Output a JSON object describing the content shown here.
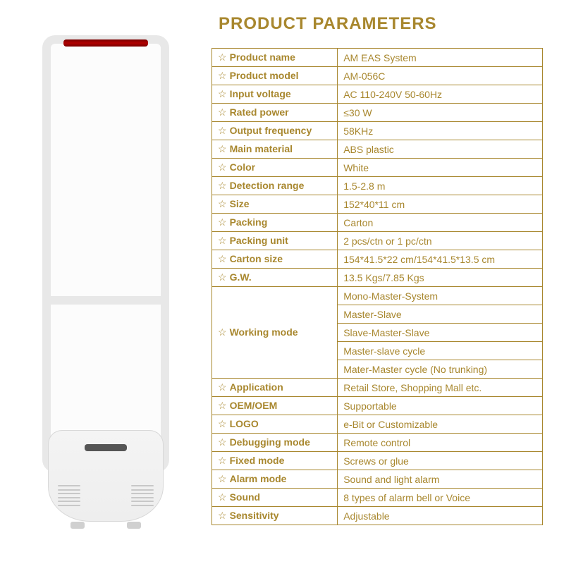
{
  "title": "PRODUCT PARAMETERS",
  "title_color": "#a8872e",
  "table": {
    "border_color": "#a8872e",
    "text_color": "#a8872e",
    "star_glyph": "☆",
    "rows": [
      {
        "label": "Product name",
        "value": "AM EAS System"
      },
      {
        "label": "Product model",
        "value": "AM-056C"
      },
      {
        "label": "Input voltage",
        "value": "AC 110-240V 50-60Hz"
      },
      {
        "label": "Rated power",
        "value": "≤30 W"
      },
      {
        "label": "Output frequency",
        "value": "58KHz"
      },
      {
        "label": "Main material",
        "value": "ABS plastic"
      },
      {
        "label": "Color",
        "value": "White"
      },
      {
        "label": "Detection range",
        "value": "1.5-2.8 m"
      },
      {
        "label": "Size",
        "value": "152*40*11 cm"
      },
      {
        "label": "Packing",
        "value": "Carton"
      },
      {
        "label": "Packing unit",
        "value": "2 pcs/ctn or 1 pc/ctn"
      },
      {
        "label": "Carton size",
        "value": "154*41.5*22 cm/154*41.5*13.5 cm"
      },
      {
        "label": "G.W.",
        "value": "13.5 Kgs/7.85 Kgs"
      },
      {
        "label": "Working mode",
        "value": "",
        "rowspan": 5,
        "values": [
          "Mono-Master-System",
          "Master-Slave",
          "Slave-Master-Slave",
          "Master-slave cycle",
          "Mater-Master cycle (No trunking)"
        ]
      },
      {
        "label": "Application",
        "value": "Retail Store, Shopping Mall etc."
      },
      {
        "label": "OEM/OEM",
        "value": "Supportable"
      },
      {
        "label": "LOGO",
        "value": "e-Bit or Customizable"
      },
      {
        "label": "Debugging mode",
        "value": "Remote control"
      },
      {
        "label": "Fixed mode",
        "value": "Screws or glue"
      },
      {
        "label": "Alarm mode",
        "value": "Sound and light alarm"
      },
      {
        "label": "Sound",
        "value": "8 types of alarm bell or Voice"
      },
      {
        "label": "Sensitivity",
        "value": "Adjustable"
      }
    ]
  },
  "typography": {
    "title_fontsize": 24,
    "cell_fontsize": 14
  },
  "background_color": "#ffffff"
}
